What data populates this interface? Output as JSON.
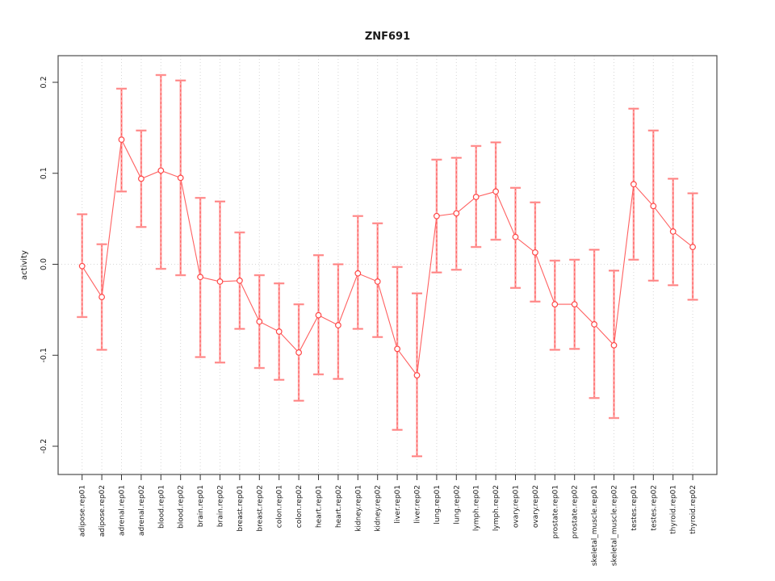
{
  "window": {
    "background": "#ffffff"
  },
  "chart_data": {
    "type": "line",
    "subtype": "points-with-error-bars",
    "title": "ZNF691",
    "xlabel": "",
    "ylabel": "activity",
    "ylim": [
      -0.23,
      0.23
    ],
    "yticks": [
      -0.2,
      -0.1,
      0.0,
      0.1,
      0.2
    ],
    "ytick_labels": [
      "-0.2",
      "-0.1",
      "0.0",
      "0.1",
      "0.2"
    ],
    "grid": {
      "vertical": "dotted line at every category",
      "horizontal": "dotted line at y=0 only"
    },
    "legend": "none",
    "categories": [
      "adipose.rep01",
      "adipose.rep02",
      "adrenal.rep01",
      "adrenal.rep02",
      "blood.rep01",
      "blood.rep02",
      "brain.rep01",
      "brain.rep02",
      "breast.rep01",
      "breast.rep02",
      "colon.rep01",
      "colon.rep02",
      "heart.rep01",
      "heart.rep02",
      "kidney.rep01",
      "kidney.rep02",
      "liver.rep01",
      "liver.rep02",
      "lung.rep01",
      "lung.rep02",
      "lymph.rep01",
      "lymph.rep02",
      "ovary.rep01",
      "ovary.rep02",
      "prostate.rep01",
      "prostate.rep02",
      "skeletal_muscle.rep01",
      "skeletal_muscle.rep02",
      "testes.rep01",
      "testes.rep02",
      "thyroid.rep01",
      "thyroid.rep02"
    ],
    "values": [
      -0.002,
      -0.036,
      0.137,
      0.094,
      0.103,
      0.095,
      -0.014,
      -0.019,
      -0.018,
      -0.063,
      -0.074,
      -0.097,
      -0.056,
      -0.067,
      -0.01,
      -0.019,
      -0.093,
      -0.122,
      0.053,
      0.056,
      0.074,
      0.08,
      0.03,
      0.013,
      -0.044,
      -0.044,
      -0.066,
      -0.089,
      0.088,
      0.064,
      0.036,
      0.019
    ],
    "ci_upper": [
      0.055,
      0.022,
      0.193,
      0.147,
      0.208,
      0.202,
      0.073,
      0.069,
      0.035,
      -0.012,
      -0.021,
      -0.044,
      0.01,
      0.0,
      0.053,
      0.045,
      -0.003,
      -0.032,
      0.115,
      0.117,
      0.13,
      0.134,
      0.084,
      0.068,
      0.004,
      0.005,
      0.016,
      -0.007,
      0.171,
      0.147,
      0.094,
      0.078
    ],
    "ci_lower": [
      -0.058,
      -0.094,
      0.08,
      0.041,
      -0.005,
      -0.012,
      -0.102,
      -0.108,
      -0.071,
      -0.114,
      -0.127,
      -0.15,
      -0.121,
      -0.126,
      -0.071,
      -0.08,
      -0.182,
      -0.211,
      -0.009,
      -0.006,
      0.019,
      0.027,
      -0.026,
      -0.041,
      -0.094,
      -0.093,
      -0.147,
      -0.169,
      0.005,
      -0.018,
      -0.023,
      -0.039
    ],
    "colors": {
      "point_stroke": "#ff4747",
      "series_line": "#ff6060",
      "error_bar_solid": "#ffa0a0",
      "error_bar_dash": "#ff5555",
      "gridline": "#d6d6d6",
      "frame": "#4d4d4d",
      "tick": "#333333",
      "text": "#1a1a1a"
    }
  }
}
